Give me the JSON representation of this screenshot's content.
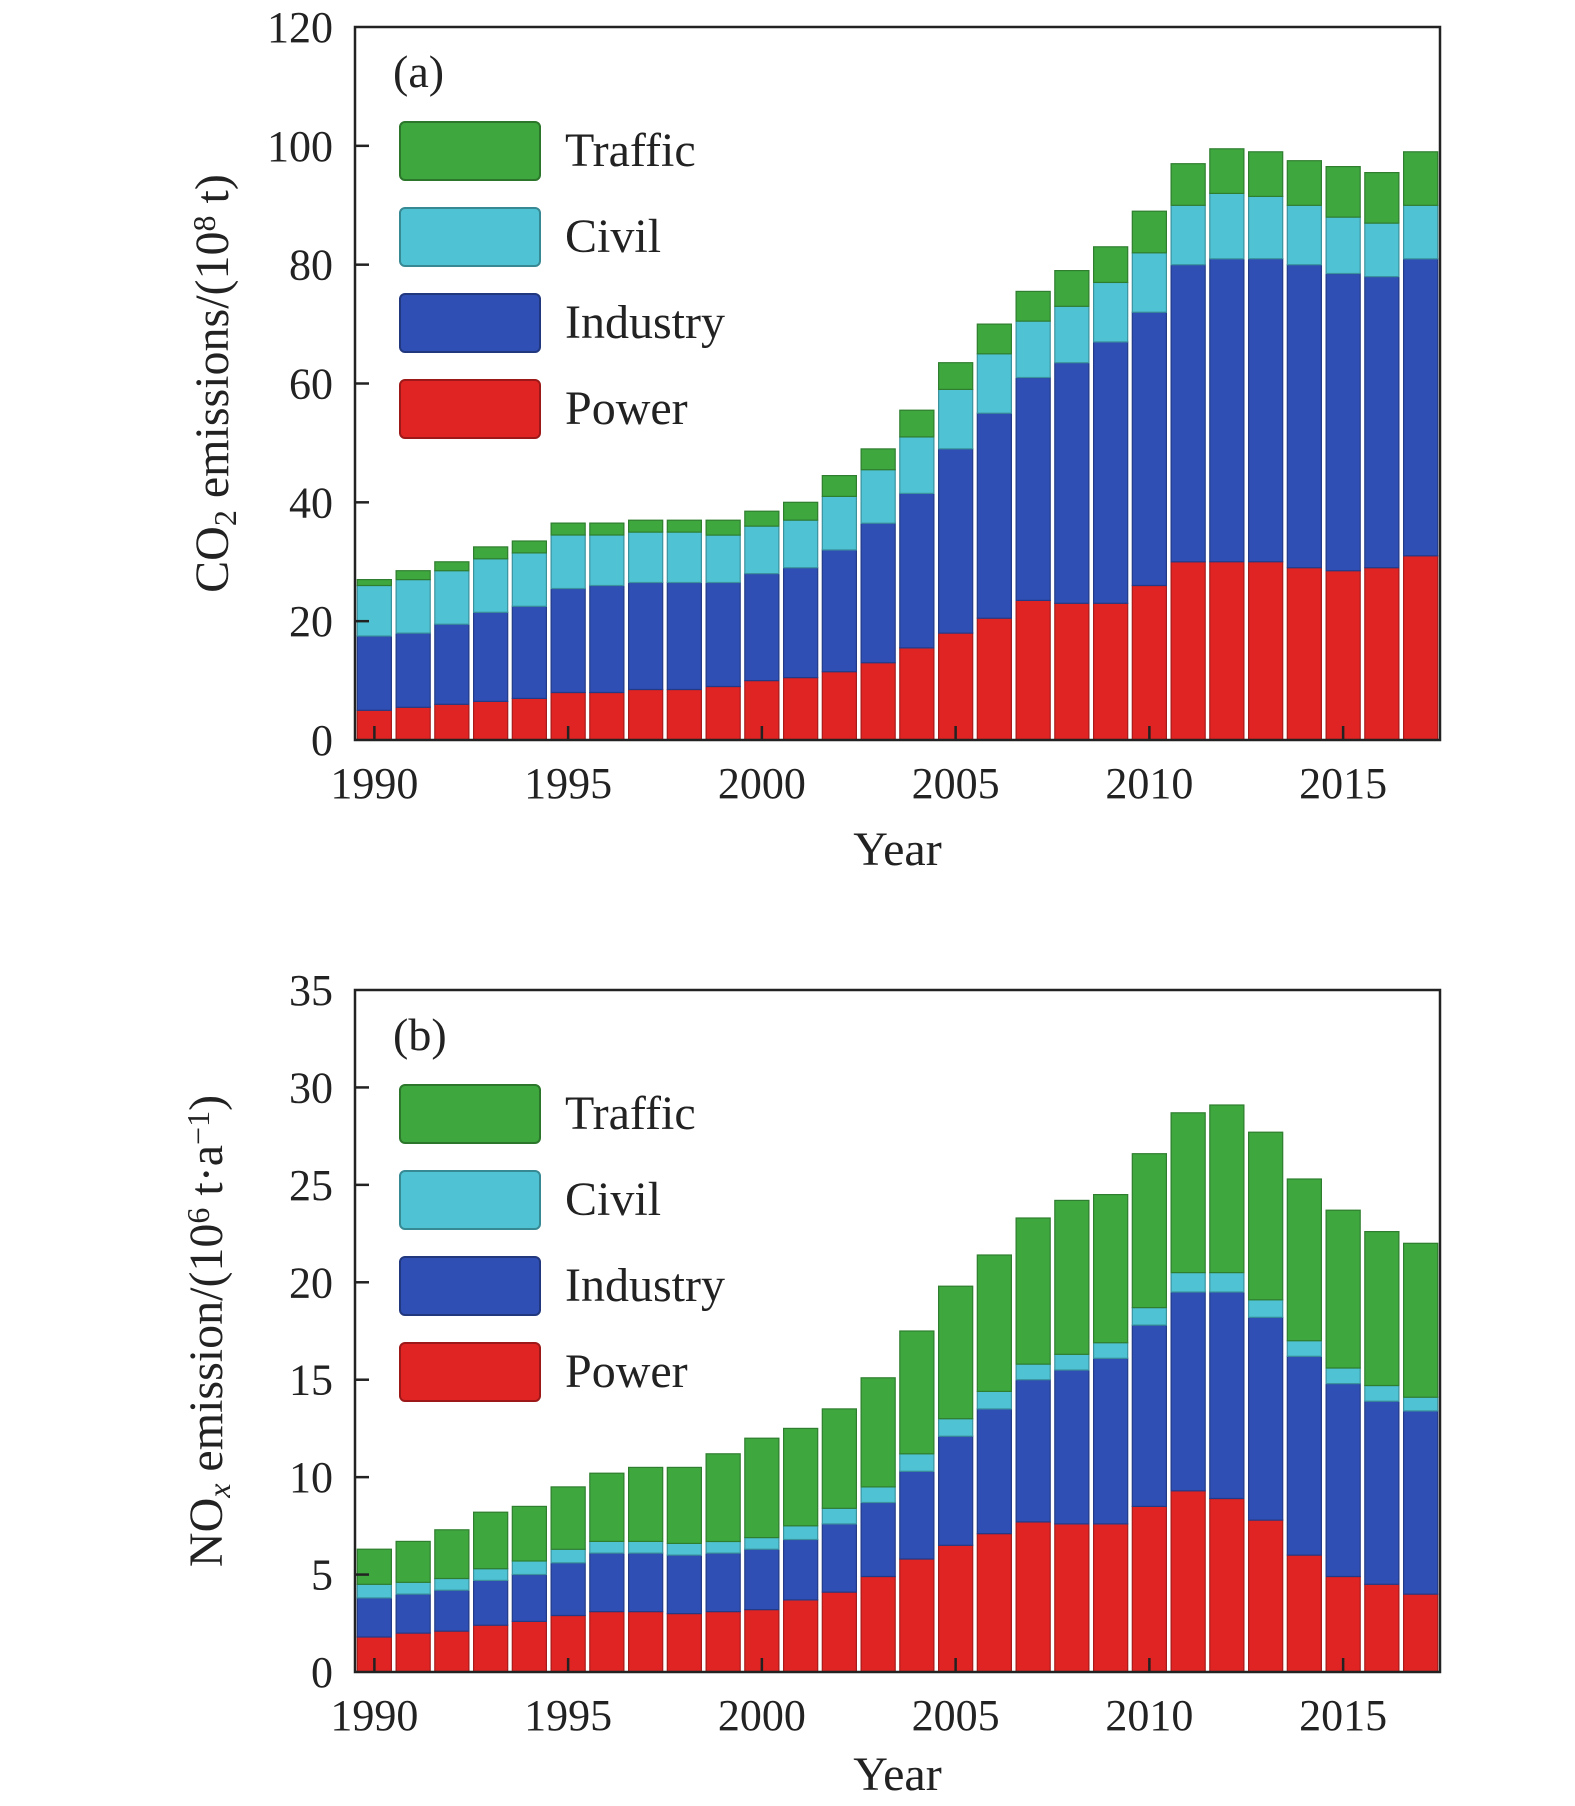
{
  "colors": {
    "Power": "#e02424",
    "Industry": "#2f4fb4",
    "Civil": "#4fc3d3",
    "Traffic": "#3ea83e"
  },
  "chart_data": [
    {
      "type": "bar",
      "stacked": true,
      "panel_label": "(a)",
      "xlabel": "Year",
      "ylabel_parts": {
        "pre": "CO",
        "sub": "2",
        "mid": " emissions/(10",
        "sup": "8",
        "post": " t)"
      },
      "ylim": [
        0,
        120
      ],
      "yticks": [
        0,
        20,
        40,
        60,
        80,
        100,
        120
      ],
      "xticks": [
        1990,
        1995,
        2000,
        2005,
        2010,
        2015
      ],
      "legend": [
        "Traffic",
        "Civil",
        "Industry",
        "Power"
      ],
      "legend_position": "top-left",
      "categories": [
        1990,
        1991,
        1992,
        1993,
        1994,
        1995,
        1996,
        1997,
        1998,
        1999,
        2000,
        2001,
        2002,
        2003,
        2004,
        2005,
        2006,
        2007,
        2008,
        2009,
        2010,
        2011,
        2012,
        2013,
        2014,
        2015,
        2016,
        2017
      ],
      "series": [
        {
          "name": "Power",
          "values": [
            5,
            5.5,
            6,
            6.5,
            7,
            8,
            8,
            8.5,
            8.5,
            9,
            10,
            10.5,
            11.5,
            13,
            15.5,
            18,
            20.5,
            23.5,
            23,
            23,
            26,
            30,
            30,
            30,
            29,
            28.5,
            29,
            31
          ]
        },
        {
          "name": "Industry",
          "values": [
            12.5,
            12.5,
            13.5,
            15,
            15.5,
            17.5,
            18,
            18,
            18,
            17.5,
            18,
            18.5,
            20.5,
            23.5,
            26,
            31,
            34.5,
            37.5,
            40.5,
            44,
            46,
            50,
            51,
            51,
            51,
            50,
            49,
            50
          ]
        },
        {
          "name": "Civil",
          "values": [
            8.5,
            9,
            9,
            9,
            9,
            9,
            8.5,
            8.5,
            8.5,
            8,
            8,
            8,
            9,
            9,
            9.5,
            10,
            10,
            9.5,
            9.5,
            10,
            10,
            10,
            11,
            10.5,
            10,
            9.5,
            9,
            9
          ]
        },
        {
          "name": "Traffic",
          "values": [
            1,
            1.5,
            1.5,
            2,
            2,
            2,
            2,
            2,
            2,
            2.5,
            2.5,
            3,
            3.5,
            3.5,
            4.5,
            4.5,
            5,
            5,
            6,
            6,
            7,
            7,
            7.5,
            7.5,
            7.5,
            8.5,
            8.5,
            9
          ]
        }
      ]
    },
    {
      "type": "bar",
      "stacked": true,
      "panel_label": "(b)",
      "xlabel": "Year",
      "ylabel_parts": {
        "pre": "NO",
        "sub": "x",
        "mid": " emission/(10",
        "sup": "6",
        "post": " t·a",
        "sup2": "−1",
        "post2": ")"
      },
      "ylim": [
        0,
        35
      ],
      "yticks": [
        0,
        5,
        10,
        15,
        20,
        25,
        30,
        35
      ],
      "xticks": [
        1990,
        1995,
        2000,
        2005,
        2010,
        2015
      ],
      "legend": [
        "Traffic",
        "Civil",
        "Industry",
        "Power"
      ],
      "legend_position": "top-left",
      "categories": [
        1990,
        1991,
        1992,
        1993,
        1994,
        1995,
        1996,
        1997,
        1998,
        1999,
        2000,
        2001,
        2002,
        2003,
        2004,
        2005,
        2006,
        2007,
        2008,
        2009,
        2010,
        2011,
        2012,
        2013,
        2014,
        2015,
        2016,
        2017
      ],
      "series": [
        {
          "name": "Power",
          "values": [
            1.8,
            2,
            2.1,
            2.4,
            2.6,
            2.9,
            3.1,
            3.1,
            3,
            3.1,
            3.2,
            3.7,
            4.1,
            4.9,
            5.8,
            6.5,
            7.1,
            7.7,
            7.6,
            7.6,
            8.5,
            9.3,
            8.9,
            7.8,
            6,
            4.9,
            4.5,
            4
          ]
        },
        {
          "name": "Industry",
          "values": [
            2,
            2,
            2.1,
            2.3,
            2.4,
            2.7,
            3,
            3,
            3,
            3,
            3.1,
            3.1,
            3.5,
            3.8,
            4.5,
            5.6,
            6.4,
            7.3,
            7.9,
            8.5,
            9.3,
            10.2,
            10.6,
            10.4,
            10.2,
            9.9,
            9.4,
            9.4
          ]
        },
        {
          "name": "Civil",
          "values": [
            0.7,
            0.6,
            0.6,
            0.6,
            0.7,
            0.7,
            0.6,
            0.6,
            0.6,
            0.6,
            0.6,
            0.7,
            0.8,
            0.8,
            0.9,
            0.9,
            0.9,
            0.8,
            0.8,
            0.8,
            0.9,
            1,
            1,
            0.9,
            0.8,
            0.8,
            0.8,
            0.7
          ]
        },
        {
          "name": "Traffic",
          "values": [
            1.8,
            2.1,
            2.5,
            2.9,
            2.8,
            3.2,
            3.5,
            3.8,
            3.9,
            4.5,
            5.1,
            5,
            5.1,
            5.6,
            6.3,
            6.8,
            7,
            7.5,
            7.9,
            7.6,
            7.9,
            8.2,
            8.6,
            8.6,
            8.3,
            8.1,
            7.9,
            7.9
          ]
        }
      ]
    }
  ]
}
